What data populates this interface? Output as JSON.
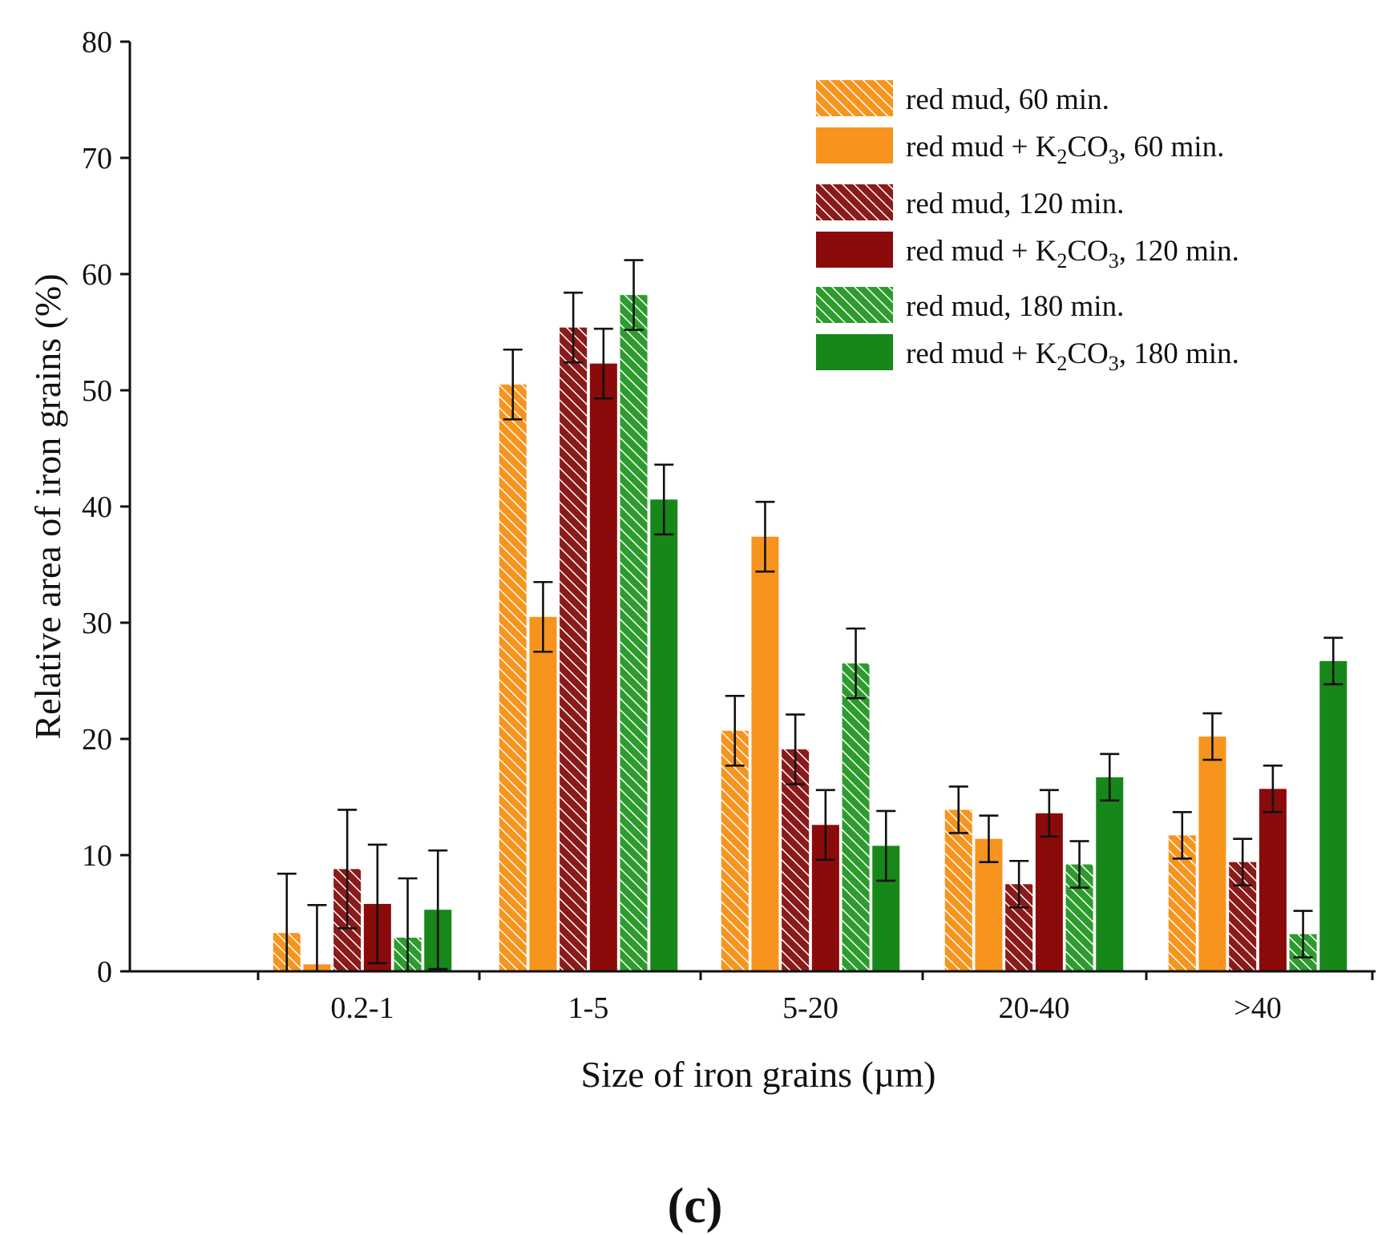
{
  "chart_data": {
    "type": "bar",
    "title": "",
    "xlabel": "Size of iron grains (µm)",
    "ylabel": "Relative area of iron grains (%)",
    "ylim": [
      0,
      80
    ],
    "yticks": [
      0,
      10,
      20,
      30,
      40,
      50,
      60,
      70,
      80
    ],
    "grid": false,
    "legend_position": "top-right",
    "panel_label": "(c)",
    "categories": [
      "0.2-1",
      "1-5",
      "5-20",
      "20-40",
      ">40"
    ],
    "series": [
      {
        "name": "red mud, 60 min.",
        "legend_main": "red mud, 60 min.",
        "color": "#F7941D",
        "hatched": true,
        "values": [
          3.3,
          50.5,
          20.7,
          13.9,
          11.7
        ],
        "errors": [
          5.1,
          3.0,
          3.0,
          2.0,
          2.0
        ]
      },
      {
        "name": "red mud + K2CO3, 60 min.",
        "legend_main": "red mud + K",
        "legend_sub1": "2",
        "legend_mid": "CO",
        "legend_sub2": "3",
        "legend_tail": ", 60 min.",
        "color": "#F7941D",
        "hatched": false,
        "values": [
          0.6,
          30.5,
          37.4,
          11.4,
          20.2
        ],
        "errors": [
          5.1,
          3.0,
          3.0,
          2.0,
          2.0
        ]
      },
      {
        "name": "red mud, 120 min.",
        "legend_main": "red mud, 120 min.",
        "color": "#8B1A1A",
        "hatched": true,
        "values": [
          8.8,
          55.4,
          19.1,
          7.5,
          9.4
        ],
        "errors": [
          5.1,
          3.0,
          3.0,
          2.0,
          2.0
        ]
      },
      {
        "name": "red mud + K2CO3, 120 min.",
        "legend_main": "red mud + K",
        "legend_sub1": "2",
        "legend_mid": "CO",
        "legend_sub2": "3",
        "legend_tail": ", 120 min.",
        "color": "#8B0A0A",
        "hatched": false,
        "values": [
          5.8,
          52.3,
          12.6,
          13.6,
          15.7
        ],
        "errors": [
          5.1,
          3.0,
          3.0,
          2.0,
          2.0
        ]
      },
      {
        "name": "red mud, 180 min.",
        "legend_main": "red mud, 180 min.",
        "color": "#2E9B2E",
        "hatched": true,
        "values": [
          2.9,
          58.2,
          26.5,
          9.2,
          3.2
        ],
        "errors": [
          5.1,
          3.0,
          3.0,
          2.0,
          2.0
        ]
      },
      {
        "name": "red mud + K2CO3, 180 min.",
        "legend_main": "red mud + K",
        "legend_sub1": "2",
        "legend_mid": "CO",
        "legend_sub2": "3",
        "legend_tail": ", 180 min.",
        "color": "#17871A",
        "hatched": false,
        "values": [
          5.3,
          40.6,
          10.8,
          16.7,
          26.7
        ],
        "errors": [
          5.1,
          3.0,
          3.0,
          2.0,
          2.0
        ]
      }
    ]
  }
}
